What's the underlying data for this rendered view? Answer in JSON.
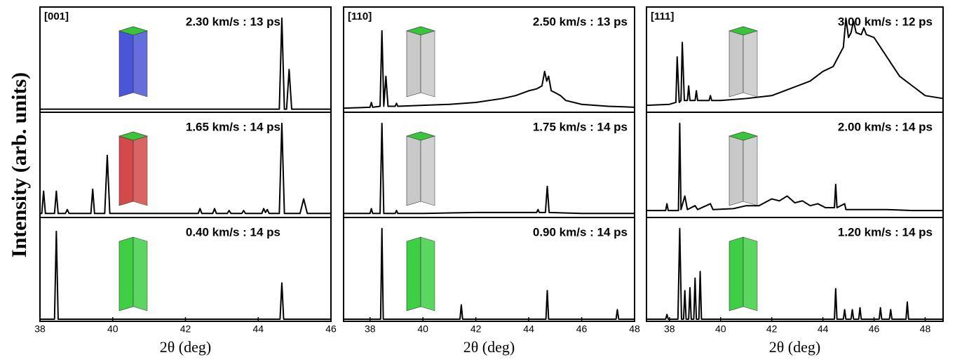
{
  "y_label": "Intensity (arb. units)",
  "chart_data": [
    {
      "type": "line",
      "annotation": "[001]",
      "title": "2.30 km/s : 13 ps",
      "color": "#000000",
      "xlim": [
        38,
        46
      ],
      "ylim": [
        0,
        1
      ],
      "x": [
        38,
        44.58,
        44.65,
        44.72,
        44.78,
        44.85,
        44.92,
        46
      ],
      "values": [
        0.01,
        0.01,
        0.95,
        0.01,
        0.01,
        0.42,
        0.01,
        0.01
      ]
    },
    {
      "type": "line",
      "title": "1.65 km/s : 14 ps",
      "color": "#000000",
      "xlim": [
        38,
        46
      ],
      "ylim": [
        0,
        1
      ],
      "x": [
        38,
        38.05,
        38.1,
        38.15,
        38.4,
        38.45,
        38.5,
        38.7,
        38.75,
        38.8,
        39.4,
        39.45,
        39.5,
        39.78,
        39.85,
        39.92,
        42.35,
        42.4,
        42.45,
        42.75,
        42.8,
        42.85,
        43.15,
        43.2,
        43.25,
        43.55,
        43.6,
        43.65,
        44.1,
        44.15,
        44.2,
        44.25,
        44.3,
        44.58,
        44.65,
        44.72,
        45.15,
        45.25,
        45.35,
        46
      ],
      "values": [
        0.02,
        0.02,
        0.25,
        0.02,
        0.02,
        0.25,
        0.02,
        0.02,
        0.06,
        0.02,
        0.02,
        0.27,
        0.02,
        0.02,
        0.62,
        0.02,
        0.02,
        0.07,
        0.02,
        0.02,
        0.07,
        0.02,
        0.02,
        0.05,
        0.02,
        0.02,
        0.05,
        0.02,
        0.02,
        0.07,
        0.03,
        0.06,
        0.02,
        0.02,
        0.95,
        0.02,
        0.02,
        0.17,
        0.02,
        0.02
      ]
    },
    {
      "type": "line",
      "title": "0.40 km/s : 14 ps",
      "color": "#000000",
      "xlim": [
        38,
        46
      ],
      "ylim": [
        0,
        1
      ],
      "xticks": [
        38,
        40,
        42,
        44,
        46
      ],
      "xlabel": "2θ (deg)",
      "x": [
        38,
        38.4,
        38.45,
        38.5,
        44.6,
        44.65,
        44.7,
        46
      ],
      "values": [
        0,
        0,
        0.92,
        0,
        0,
        0.38,
        0,
        0
      ]
    },
    {
      "type": "line",
      "annotation": "[110]",
      "title": "2.50 km/s : 13 ps",
      "color": "#000000",
      "xlim": [
        37,
        48
      ],
      "ylim": [
        0,
        1
      ],
      "x": [
        37,
        38,
        38.05,
        38.1,
        38.38,
        38.45,
        38.52,
        38.6,
        38.68,
        38.95,
        39,
        39.05,
        40,
        41,
        42,
        43,
        43.5,
        44,
        44.3,
        44.5,
        44.6,
        44.68,
        44.75,
        44.85,
        45,
        45.2,
        45.4,
        46,
        47,
        48
      ],
      "values": [
        0.02,
        0.03,
        0.08,
        0.03,
        0.04,
        0.82,
        0.04,
        0.35,
        0.04,
        0.04,
        0.07,
        0.04,
        0.05,
        0.06,
        0.08,
        0.12,
        0.15,
        0.2,
        0.22,
        0.25,
        0.4,
        0.3,
        0.35,
        0.2,
        0.18,
        0.15,
        0.1,
        0.06,
        0.04,
        0.03
      ]
    },
    {
      "type": "line",
      "title": "1.75 km/s : 14 ps",
      "color": "#000000",
      "xlim": [
        37,
        48
      ],
      "ylim": [
        0,
        1
      ],
      "x": [
        37,
        38,
        38.05,
        38.1,
        38.38,
        38.45,
        38.52,
        38.95,
        39,
        39.05,
        40,
        42,
        44,
        44.3,
        44.35,
        44.4,
        44.63,
        44.7,
        44.77,
        46,
        48
      ],
      "values": [
        0.02,
        0.02,
        0.07,
        0.02,
        0.02,
        0.95,
        0.02,
        0.02,
        0.05,
        0.02,
        0.02,
        0.03,
        0.03,
        0.03,
        0.06,
        0.03,
        0.03,
        0.3,
        0.03,
        0.02,
        0.02
      ]
    },
    {
      "type": "line",
      "title": "0.90 km/s : 14 ps",
      "color": "#000000",
      "xlim": [
        37,
        48
      ],
      "ylim": [
        0,
        1
      ],
      "xticks": [
        38,
        40,
        42,
        44,
        46,
        48
      ],
      "xlabel": "2θ (deg)",
      "x": [
        37,
        38.4,
        38.45,
        38.5,
        41.4,
        41.45,
        41.5,
        44.65,
        44.7,
        44.75,
        47.3,
        47.35,
        47.4,
        48
      ],
      "values": [
        0,
        0,
        0.95,
        0,
        0,
        0.15,
        0,
        0,
        0.3,
        0,
        0,
        0.1,
        0,
        0
      ]
    },
    {
      "type": "line",
      "annotation": "[111]",
      "title": "3.00 km/s : 12 ps",
      "color": "#000000",
      "xlim": [
        37.1,
        48.7
      ],
      "ylim": [
        0,
        1
      ],
      "x": [
        37.1,
        38,
        38.25,
        38.3,
        38.38,
        38.45,
        38.5,
        38.58,
        38.7,
        38.75,
        38.8,
        39,
        39.05,
        39.1,
        39.55,
        39.6,
        39.65,
        40,
        41,
        42,
        43,
        43.5,
        44,
        44.4,
        44.5,
        44.6,
        44.8,
        44.9,
        45,
        45.1,
        45.2,
        45.3,
        45.5,
        45.6,
        45.7,
        46,
        46.5,
        47,
        47.5,
        48,
        48.7
      ],
      "values": [
        0.05,
        0.06,
        0.08,
        0.55,
        0.08,
        0.1,
        0.7,
        0.1,
        0.1,
        0.25,
        0.1,
        0.1,
        0.2,
        0.1,
        0.1,
        0.15,
        0.1,
        0.1,
        0.12,
        0.15,
        0.25,
        0.3,
        0.4,
        0.45,
        0.5,
        0.55,
        0.65,
        0.95,
        0.75,
        0.8,
        0.92,
        0.8,
        0.78,
        0.85,
        0.78,
        0.75,
        0.55,
        0.35,
        0.25,
        0.15,
        0.12
      ]
    },
    {
      "type": "line",
      "title": "2.00 km/s : 14 ps",
      "color": "#000000",
      "xlim": [
        37.1,
        48.7
      ],
      "ylim": [
        0,
        1
      ],
      "x": [
        37.1,
        37.85,
        37.9,
        37.95,
        38.35,
        38.4,
        38.45,
        38.6,
        38.7,
        39,
        39.1,
        39.6,
        39.7,
        40.5,
        41,
        41.5,
        42,
        42.3,
        42.6,
        42.9,
        43.2,
        43.5,
        43.8,
        44.1,
        44.45,
        44.5,
        44.55,
        44.85,
        44.9,
        45.5,
        46.5,
        47.5,
        48.7
      ],
      "values": [
        0.05,
        0.05,
        0.12,
        0.05,
        0.05,
        0.95,
        0.06,
        0.2,
        0.06,
        0.1,
        0.06,
        0.12,
        0.06,
        0.07,
        0.1,
        0.1,
        0.17,
        0.15,
        0.2,
        0.13,
        0.15,
        0.1,
        0.12,
        0.08,
        0.08,
        0.32,
        0.08,
        0.12,
        0.06,
        0.06,
        0.06,
        0.05,
        0.05
      ]
    },
    {
      "type": "line",
      "title": "1.20 km/s : 14 ps",
      "color": "#000000",
      "xlim": [
        37.1,
        48.7
      ],
      "ylim": [
        0,
        1
      ],
      "xticks": [
        38,
        40,
        42,
        44,
        46,
        48
      ],
      "xlabel": "2θ (deg)",
      "x": [
        37.1,
        37.85,
        37.9,
        37.95,
        38.33,
        38.4,
        38.47,
        38.55,
        38.6,
        38.65,
        38.75,
        38.8,
        38.85,
        38.95,
        39,
        39.05,
        39.15,
        39.2,
        39.25,
        44.45,
        44.5,
        44.55,
        44.8,
        44.85,
        44.9,
        45.1,
        45.15,
        45.2,
        45.4,
        45.45,
        45.5,
        46.2,
        46.25,
        46.3,
        46.6,
        46.65,
        46.7,
        47.25,
        47.3,
        47.35,
        48.7
      ],
      "values": [
        0,
        0,
        0.05,
        0,
        0,
        0.95,
        0,
        0,
        0.3,
        0,
        0,
        0.33,
        0,
        0,
        0.43,
        0,
        0,
        0.5,
        0,
        0,
        0.32,
        0,
        0,
        0.1,
        0,
        0,
        0.1,
        0,
        0,
        0.12,
        0,
        0,
        0.12,
        0,
        0,
        0.1,
        0,
        0,
        0.18,
        0,
        0
      ]
    }
  ]
}
